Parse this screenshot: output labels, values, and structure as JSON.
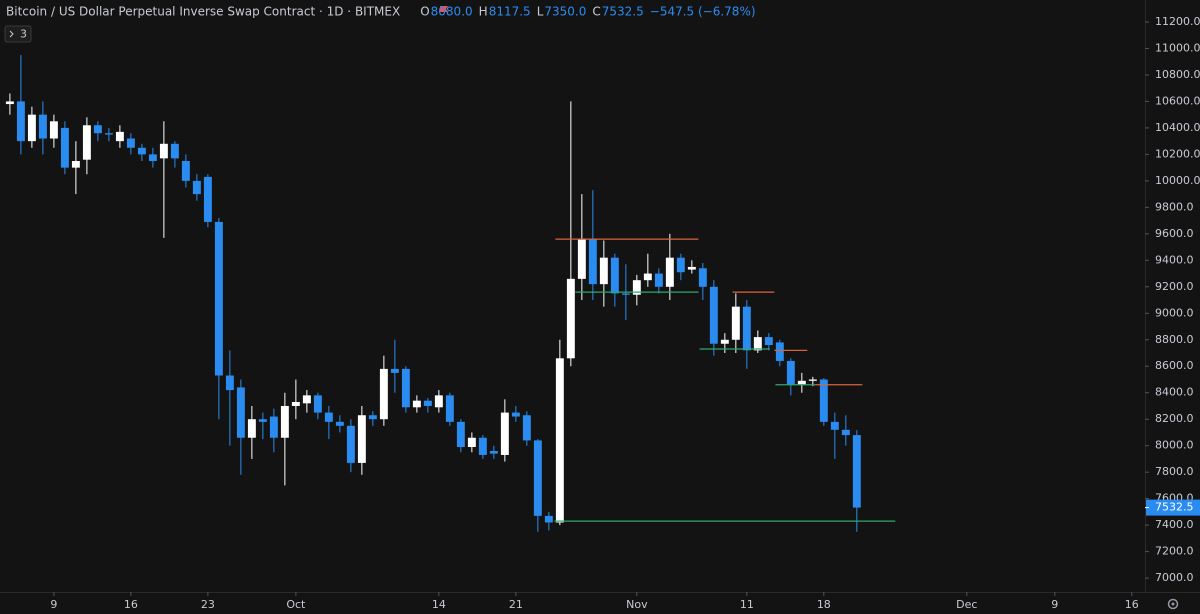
{
  "chart_data": {
    "type": "candlestick",
    "title": "Bitcoin / US Dollar Perpetual Inverse Swap Contract · 1D · BITMEX",
    "legend_ohlc": [
      {
        "key": "O",
        "value": "8080.0"
      },
      {
        "key": "H",
        "value": "8117.5"
      },
      {
        "key": "L",
        "value": "7350.0"
      },
      {
        "key": "C",
        "value": "7532.5"
      }
    ],
    "change": "−547.5 (−6.78%)",
    "indicator_count": "3",
    "up_color": "#ffffff",
    "down_color": "#2a8cf0",
    "open": [
      10580,
      10600,
      10300,
      10500,
      10320,
      10400,
      10100,
      10160,
      10420,
      10360,
      10300,
      10320,
      10250,
      10200,
      10170,
      10280,
      10150,
      10000,
      10030,
      9690,
      8530,
      8440,
      8060,
      8200,
      8220,
      8060,
      8300,
      8320,
      8380,
      8250,
      8180,
      8150,
      7870,
      8230,
      8200,
      8580,
      8580,
      8290,
      8340,
      8290,
      8380,
      8180,
      7990,
      8060,
      7960,
      7930,
      8250,
      8230,
      8040,
      7470,
      7420,
      8660,
      9260,
      9560,
      9220,
      9420,
      9150,
      9140,
      9250,
      9300,
      9200,
      9420,
      9330,
      9340,
      9200,
      8770,
      8800,
      9050,
      8720,
      8820,
      8780,
      8640,
      8460,
      8490,
      8500,
      8180,
      8120,
      8080
    ],
    "high": [
      10660,
      10950,
      10560,
      10600,
      10500,
      10450,
      10300,
      10480,
      10450,
      10400,
      10420,
      10360,
      10280,
      10250,
      10450,
      10300,
      10200,
      10050,
      10050,
      9720,
      8720,
      8500,
      8300,
      8250,
      8280,
      8400,
      8500,
      8420,
      8400,
      8300,
      8230,
      8200,
      8300,
      8260,
      8680,
      8800,
      8600,
      8380,
      8360,
      8420,
      8400,
      8200,
      8100,
      8080,
      8000,
      8350,
      8300,
      8260,
      8050,
      7500,
      8800,
      10600,
      9900,
      9930,
      9550,
      9450,
      9370,
      9290,
      9450,
      9340,
      9600,
      9450,
      9400,
      9380,
      9250,
      8850,
      9150,
      9100,
      8870,
      8850,
      8800,
      8660,
      8550,
      8520,
      8510,
      8250,
      8230,
      8117.5
    ],
    "low": [
      10500,
      10200,
      10250,
      10200,
      10250,
      10050,
      9900,
      10050,
      10300,
      10300,
      10250,
      10200,
      10150,
      10100,
      9570,
      10100,
      9950,
      9850,
      9650,
      8200,
      8000,
      7780,
      7900,
      8050,
      7950,
      7700,
      8200,
      8250,
      8200,
      8050,
      8100,
      7800,
      7780,
      8150,
      8150,
      8400,
      8250,
      8250,
      8250,
      8250,
      8150,
      7950,
      7950,
      7900,
      7900,
      7880,
      8180,
      8000,
      7350,
      7360,
      7400,
      8600,
      9100,
      9100,
      9050,
      9050,
      8950,
      9060,
      9200,
      9150,
      9100,
      9250,
      9300,
      9100,
      8680,
      8700,
      8700,
      8580,
      8700,
      8720,
      8600,
      8380,
      8400,
      8450,
      8150,
      7900,
      8000,
      7350
    ],
    "close": [
      10600,
      10300,
      10500,
      10320,
      10450,
      10100,
      10150,
      10420,
      10360,
      10350,
      10370,
      10250,
      10200,
      10150,
      10280,
      10170,
      10000,
      9900,
      9690,
      8530,
      8420,
      8060,
      8200,
      8180,
      8060,
      8300,
      8330,
      8380,
      8250,
      8180,
      8150,
      7870,
      8230,
      8200,
      8580,
      8550,
      8290,
      8340,
      8300,
      8380,
      8180,
      7990,
      8060,
      7930,
      7940,
      8250,
      8220,
      8040,
      7470,
      7420,
      8660,
      9260,
      9560,
      9220,
      9420,
      9150,
      9140,
      9250,
      9300,
      9200,
      9420,
      9310,
      9350,
      9200,
      8770,
      8800,
      9050,
      8720,
      8820,
      8760,
      8640,
      8460,
      8490,
      8500,
      8180,
      8120,
      8080,
      7532.5
    ],
    "levels": [
      {
        "price": 9560,
        "from": 49.6,
        "to": 62.6,
        "color": "#d9643a"
      },
      {
        "price": 9160,
        "from": 51.4,
        "to": 62.6,
        "color": "#2ea86a"
      },
      {
        "price": 9160,
        "from": 65.7,
        "to": 69.5,
        "color": "#d9643a"
      },
      {
        "price": 8730,
        "from": 62.7,
        "to": 69.1,
        "color": "#2ea86a"
      },
      {
        "price": 8720,
        "from": 69.5,
        "to": 72.5,
        "color": "#d9643a"
      },
      {
        "price": 8460,
        "from": 69.6,
        "to": 73.2,
        "color": "#2ea86a"
      },
      {
        "price": 8460,
        "from": 73.2,
        "to": 77.5,
        "color": "#d9643a"
      },
      {
        "price": 7430,
        "from": 49.5,
        "to": 80.5,
        "color": "#2ea86a"
      }
    ],
    "xlim": [
      -0.9,
      103.2
    ],
    "xticks": [
      {
        "value": 4,
        "label": "9"
      },
      {
        "value": 11,
        "label": "16"
      },
      {
        "value": 18,
        "label": "23"
      },
      {
        "value": 26,
        "label": "Oct"
      },
      {
        "value": 39,
        "label": "14"
      },
      {
        "value": 46,
        "label": "21"
      },
      {
        "value": 57,
        "label": "Nov"
      },
      {
        "value": 67,
        "label": "11"
      },
      {
        "value": 74,
        "label": "18"
      },
      {
        "value": 87,
        "label": "Dec"
      },
      {
        "value": 95,
        "label": "9"
      },
      {
        "value": 102,
        "label": "16"
      }
    ],
    "ylim": [
      6895,
      11366
    ],
    "yticks": [
      {
        "value": 7000,
        "label": "7000.0"
      },
      {
        "value": 7200,
        "label": "7200.0"
      },
      {
        "value": 7400,
        "label": "7400.0"
      },
      {
        "value": 7600,
        "label": "7600.0"
      },
      {
        "value": 7800,
        "label": "7800.0"
      },
      {
        "value": 8000,
        "label": "8000.0"
      },
      {
        "value": 8200,
        "label": "8200.0"
      },
      {
        "value": 8400,
        "label": "8400.0"
      },
      {
        "value": 8600,
        "label": "8600.0"
      },
      {
        "value": 8800,
        "label": "8800.0"
      },
      {
        "value": 9000,
        "label": "9000.0"
      },
      {
        "value": 9200,
        "label": "9200.0"
      },
      {
        "value": 9400,
        "label": "9400.0"
      },
      {
        "value": 9600,
        "label": "9600.0"
      },
      {
        "value": 9800,
        "label": "9800.0"
      },
      {
        "value": 10000,
        "label": "10000.0"
      },
      {
        "value": 10200,
        "label": "10200.0"
      },
      {
        "value": 10400,
        "label": "10400.0"
      },
      {
        "value": 10600,
        "label": "10600.0"
      },
      {
        "value": 10800,
        "label": "10800.0"
      },
      {
        "value": 11000,
        "label": "11000.0"
      },
      {
        "value": 11200,
        "label": "11200.0"
      }
    ],
    "grid": false
  }
}
